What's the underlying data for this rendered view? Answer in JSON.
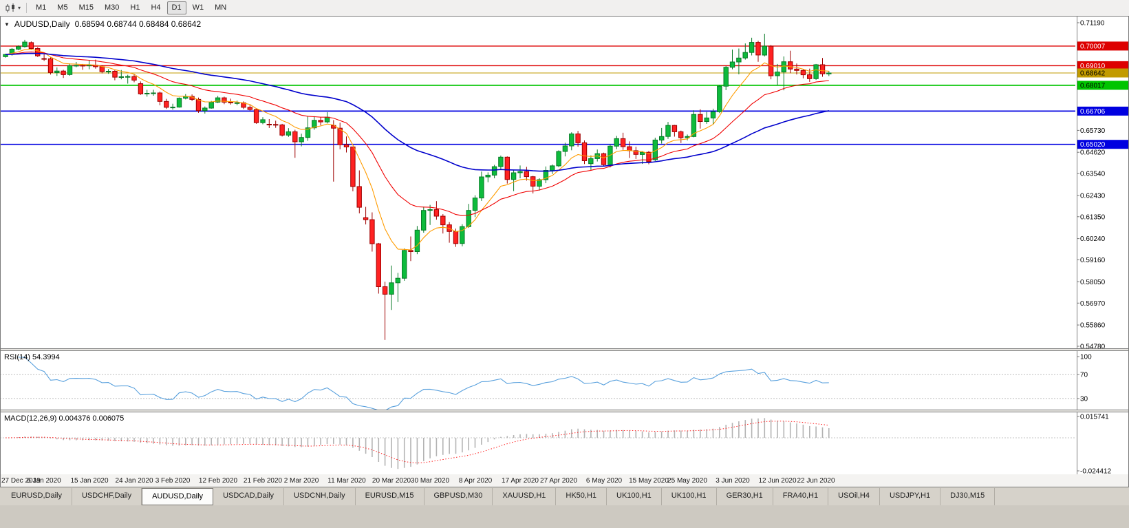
{
  "toolbar": {
    "chart_type_icon": "candlestick-chart",
    "dropdown_caret": "▾",
    "timeframes": [
      "M1",
      "M5",
      "M15",
      "M30",
      "H1",
      "H4",
      "D1",
      "W1",
      "MN"
    ],
    "active_timeframe": "D1"
  },
  "chart": {
    "header": {
      "collapse_icon": "▼",
      "symbol": "AUDUSD,Daily",
      "ohlc": "0.68594 0.68744 0.68484 0.68642"
    }
  },
  "chart_data": {
    "type": "candlestick",
    "symbol": "AUDUSD",
    "timeframe": "Daily",
    "price_axis": {
      "top": 0.7119,
      "bottom": 0.5478,
      "labels": [
        "0.71190",
        "0.65730",
        "0.64620",
        "0.63540",
        "0.62430",
        "0.61350",
        "0.60240",
        "0.59160",
        "0.58050",
        "0.56970",
        "0.55860",
        "0.54780"
      ]
    },
    "levels": [
      {
        "label": "0.70007",
        "value": 0.70007,
        "color": "#dd0000",
        "text_color": "#ffffff",
        "width": 1.4
      },
      {
        "label": "0.69010",
        "value": 0.6901,
        "color": "#dd0000",
        "text_color": "#ffffff",
        "width": 1.4
      },
      {
        "label": "0.68642",
        "value": 0.68642,
        "color": "#c29b00",
        "text_color": "#000000",
        "width": 1.1
      },
      {
        "label": "0.68017",
        "value": 0.68017,
        "color": "#00c400",
        "text_color": "#000000",
        "width": 1.7
      },
      {
        "label": "0.66706",
        "value": 0.66706,
        "color": "#0000e0",
        "text_color": "#ffffff",
        "width": 1.7
      },
      {
        "label": "0.65020",
        "value": 0.6502,
        "color": "#0000e0",
        "text_color": "#ffffff",
        "width": 1.7
      }
    ],
    "colors": {
      "up": "#0dbb3c",
      "up_border": "#077a26",
      "down": "#ff2222",
      "down_border": "#9e0000"
    },
    "moving_averages": [
      {
        "name": "fast-ma",
        "period": 8,
        "color": "#ff9c00",
        "width": 1.1
      },
      {
        "name": "medium-ma",
        "period": 21,
        "color": "#f00000",
        "width": 1.1
      },
      {
        "name": "slow-ma",
        "period": 55,
        "color": "#0000cc",
        "width": 1.6
      }
    ],
    "x_labels": [
      [
        1,
        "27 Dec 2019"
      ],
      [
        6,
        "6 Jan 2020"
      ],
      [
        13,
        "15 Jan 2020"
      ],
      [
        20,
        "24 Jan 2020"
      ],
      [
        26,
        "3 Feb 2020"
      ],
      [
        33,
        "12 Feb 2020"
      ],
      [
        40,
        "21 Feb 2020"
      ],
      [
        46,
        "2 Mar 2020"
      ],
      [
        53,
        "11 Mar 2020"
      ],
      [
        60,
        "20 Mar 2020"
      ],
      [
        66,
        "30 Mar 2020"
      ],
      [
        73,
        "8 Apr 2020"
      ],
      [
        80,
        "17 Apr 2020"
      ],
      [
        86,
        "27 Apr 2020"
      ],
      [
        93,
        "6 May 2020"
      ],
      [
        100,
        "15 May 2020"
      ],
      [
        106,
        "25 May 2020"
      ],
      [
        113,
        "3 Jun 2020"
      ],
      [
        120,
        "12 Jun 2020"
      ],
      [
        126,
        "22 Jun 2020"
      ]
    ],
    "ohlc": [
      [
        0.6947,
        0.6962,
        0.6942,
        0.6958
      ],
      [
        0.6958,
        0.699,
        0.6952,
        0.6985
      ],
      [
        0.6985,
        0.7004,
        0.698,
        0.6998
      ],
      [
        0.6998,
        0.7032,
        0.6993,
        0.7021
      ],
      [
        0.7018,
        0.7024,
        0.6981,
        0.6988
      ],
      [
        0.6988,
        0.6995,
        0.6945,
        0.6951
      ],
      [
        0.6937,
        0.6959,
        0.6925,
        0.6936
      ],
      [
        0.6936,
        0.6943,
        0.6856,
        0.6866
      ],
      [
        0.6866,
        0.6892,
        0.6849,
        0.6874
      ],
      [
        0.6874,
        0.688,
        0.6839,
        0.6856
      ],
      [
        0.6856,
        0.6912,
        0.685,
        0.6901
      ],
      [
        0.6901,
        0.692,
        0.6893,
        0.6903
      ],
      [
        0.6903,
        0.691,
        0.688,
        0.6902
      ],
      [
        0.6902,
        0.6927,
        0.6883,
        0.6904
      ],
      [
        0.6904,
        0.6932,
        0.6886,
        0.6896
      ],
      [
        0.6896,
        0.6903,
        0.6862,
        0.6871
      ],
      [
        0.6871,
        0.6884,
        0.686,
        0.6873
      ],
      [
        0.6873,
        0.6878,
        0.6827,
        0.6843
      ],
      [
        0.6843,
        0.6879,
        0.6832,
        0.6845
      ],
      [
        0.6845,
        0.6855,
        0.681,
        0.6846
      ],
      [
        0.6846,
        0.6858,
        0.6817,
        0.6828
      ],
      [
        0.681,
        0.6821,
        0.6753,
        0.6758
      ],
      [
        0.6758,
        0.6779,
        0.6744,
        0.6761
      ],
      [
        0.6761,
        0.6779,
        0.6749,
        0.6763
      ],
      [
        0.6763,
        0.677,
        0.67,
        0.672
      ],
      [
        0.672,
        0.6733,
        0.6682,
        0.669
      ],
      [
        0.669,
        0.6708,
        0.6678,
        0.6691
      ],
      [
        0.6691,
        0.674,
        0.6688,
        0.6736
      ],
      [
        0.6736,
        0.6757,
        0.673,
        0.6745
      ],
      [
        0.6745,
        0.6755,
        0.6722,
        0.673
      ],
      [
        0.673,
        0.6739,
        0.6662,
        0.6673
      ],
      [
        0.6673,
        0.6694,
        0.6658,
        0.6686
      ],
      [
        0.6686,
        0.6722,
        0.6683,
        0.6716
      ],
      [
        0.6716,
        0.6748,
        0.6712,
        0.6738
      ],
      [
        0.6738,
        0.6744,
        0.6706,
        0.6716
      ],
      [
        0.6716,
        0.6734,
        0.6704,
        0.6712
      ],
      [
        0.6712,
        0.6724,
        0.67,
        0.6713
      ],
      [
        0.6713,
        0.672,
        0.6681,
        0.669
      ],
      [
        0.669,
        0.6702,
        0.6673,
        0.6679
      ],
      [
        0.6679,
        0.6683,
        0.6606,
        0.6612
      ],
      [
        0.6612,
        0.664,
        0.6604,
        0.6627
      ],
      [
        0.6604,
        0.663,
        0.6585,
        0.6603
      ],
      [
        0.6603,
        0.6622,
        0.6586,
        0.6601
      ],
      [
        0.6601,
        0.6606,
        0.6542,
        0.6549
      ],
      [
        0.6549,
        0.6584,
        0.654,
        0.6566
      ],
      [
        0.6566,
        0.6576,
        0.6434,
        0.6515
      ],
      [
        0.6515,
        0.6556,
        0.6492,
        0.6537
      ],
      [
        0.6537,
        0.6646,
        0.652,
        0.6586
      ],
      [
        0.6586,
        0.6645,
        0.6576,
        0.6624
      ],
      [
        0.6624,
        0.6639,
        0.6598,
        0.6616
      ],
      [
        0.6616,
        0.6665,
        0.6609,
        0.664
      ],
      [
        0.6598,
        0.6625,
        0.6313,
        0.6584
      ],
      [
        0.6584,
        0.6612,
        0.6477,
        0.65
      ],
      [
        0.65,
        0.6542,
        0.6461,
        0.6489
      ],
      [
        0.6489,
        0.649,
        0.6264,
        0.6288
      ],
      [
        0.6288,
        0.637,
        0.6152,
        0.6183
      ],
      [
        0.613,
        0.6185,
        0.6096,
        0.612
      ],
      [
        0.612,
        0.6157,
        0.5958,
        0.5998
      ],
      [
        0.5998,
        0.6002,
        0.5745,
        0.578
      ],
      [
        0.578,
        0.5805,
        0.551,
        0.5742
      ],
      [
        0.5742,
        0.5887,
        0.5662,
        0.58
      ],
      [
        0.58,
        0.585,
        0.5702,
        0.5823
      ],
      [
        0.5823,
        0.5974,
        0.581,
        0.5964
      ],
      [
        0.5964,
        0.6035,
        0.591,
        0.5958
      ],
      [
        0.5958,
        0.6088,
        0.5945,
        0.6067
      ],
      [
        0.6067,
        0.6186,
        0.6054,
        0.6167
      ],
      [
        0.6167,
        0.6195,
        0.6093,
        0.6171
      ],
      [
        0.6171,
        0.6214,
        0.612,
        0.6138
      ],
      [
        0.6138,
        0.6148,
        0.605,
        0.6094
      ],
      [
        0.6094,
        0.6108,
        0.6003,
        0.606
      ],
      [
        0.606,
        0.6075,
        0.5982,
        0.5999
      ],
      [
        0.5999,
        0.6097,
        0.5985,
        0.6085
      ],
      [
        0.6085,
        0.62,
        0.6078,
        0.6167
      ],
      [
        0.6167,
        0.6244,
        0.6133,
        0.623
      ],
      [
        0.623,
        0.6364,
        0.6215,
        0.6337
      ],
      [
        0.6337,
        0.636,
        0.631,
        0.6346
      ],
      [
        0.6346,
        0.6398,
        0.633,
        0.6389
      ],
      [
        0.6389,
        0.6445,
        0.6375,
        0.6437
      ],
      [
        0.6437,
        0.6441,
        0.6303,
        0.6324
      ],
      [
        0.6324,
        0.637,
        0.6265,
        0.6358
      ],
      [
        0.6358,
        0.6395,
        0.633,
        0.6364
      ],
      [
        0.6364,
        0.6388,
        0.6318,
        0.6338
      ],
      [
        0.6338,
        0.6342,
        0.6253,
        0.629
      ],
      [
        0.629,
        0.633,
        0.6268,
        0.6323
      ],
      [
        0.6323,
        0.639,
        0.6305,
        0.637
      ],
      [
        0.637,
        0.64,
        0.6352,
        0.6393
      ],
      [
        0.6393,
        0.6472,
        0.6386,
        0.6466
      ],
      [
        0.6466,
        0.651,
        0.6441,
        0.6494
      ],
      [
        0.6494,
        0.6563,
        0.6472,
        0.6555
      ],
      [
        0.6555,
        0.657,
        0.649,
        0.651
      ],
      [
        0.651,
        0.6522,
        0.6402,
        0.6419
      ],
      [
        0.6404,
        0.6446,
        0.6372,
        0.643
      ],
      [
        0.643,
        0.6476,
        0.6415,
        0.6455
      ],
      [
        0.6455,
        0.646,
        0.6391,
        0.6399
      ],
      [
        0.6399,
        0.6503,
        0.6385,
        0.6493
      ],
      [
        0.6493,
        0.6545,
        0.6478,
        0.6531
      ],
      [
        0.6531,
        0.6561,
        0.6474,
        0.649
      ],
      [
        0.649,
        0.6517,
        0.6433,
        0.647
      ],
      [
        0.647,
        0.649,
        0.6428,
        0.6451
      ],
      [
        0.6451,
        0.6468,
        0.6403,
        0.6462
      ],
      [
        0.6462,
        0.6469,
        0.6401,
        0.6415
      ],
      [
        0.6424,
        0.6536,
        0.6417,
        0.6524
      ],
      [
        0.6524,
        0.6585,
        0.6506,
        0.6542
      ],
      [
        0.6542,
        0.6616,
        0.653,
        0.6598
      ],
      [
        0.6598,
        0.6601,
        0.6541,
        0.6566
      ],
      [
        0.6566,
        0.6572,
        0.6509,
        0.6536
      ],
      [
        0.6536,
        0.6552,
        0.6522,
        0.6542
      ],
      [
        0.6542,
        0.6675,
        0.6538,
        0.6654
      ],
      [
        0.6654,
        0.668,
        0.6582,
        0.6618
      ],
      [
        0.6618,
        0.6666,
        0.6606,
        0.6636
      ],
      [
        0.6636,
        0.6683,
        0.6602,
        0.6667
      ],
      [
        0.6667,
        0.6803,
        0.6661,
        0.6797
      ],
      [
        0.6797,
        0.6899,
        0.6777,
        0.6893
      ],
      [
        0.6893,
        0.6983,
        0.6883,
        0.692
      ],
      [
        0.692,
        0.6988,
        0.6857,
        0.694
      ],
      [
        0.694,
        0.7014,
        0.6932,
        0.6968
      ],
      [
        0.6968,
        0.7043,
        0.6953,
        0.7019
      ],
      [
        0.7019,
        0.7027,
        0.6921,
        0.6955
      ],
      [
        0.6955,
        0.7063,
        0.6948,
        0.7
      ],
      [
        0.7,
        0.7006,
        0.6832,
        0.685
      ],
      [
        0.685,
        0.691,
        0.68,
        0.6869
      ],
      [
        0.6869,
        0.6948,
        0.6776,
        0.6921
      ],
      [
        0.6921,
        0.6977,
        0.6863,
        0.6884
      ],
      [
        0.6884,
        0.6912,
        0.6856,
        0.6877
      ],
      [
        0.6877,
        0.6885,
        0.6837,
        0.6855
      ],
      [
        0.6855,
        0.6886,
        0.6819,
        0.6835
      ],
      [
        0.6835,
        0.691,
        0.6829,
        0.6906
      ],
      [
        0.6906,
        0.694,
        0.6845,
        0.686
      ],
      [
        0.68594,
        0.68744,
        0.68484,
        0.68642
      ]
    ],
    "indicators": {
      "rsi": {
        "label": "RSI(14) 54.3994",
        "period": 14,
        "value": 54.3994,
        "levels": [
          100,
          70,
          30
        ],
        "color": "#58a0dd"
      },
      "macd": {
        "label": "MACD(12,26,9) 0.004376 0.006075",
        "fast": 12,
        "slow": 26,
        "signal_period": 9,
        "value": 0.004376,
        "signal_value": 0.006075,
        "axis_labels": [
          "0.015741",
          "-0.024412"
        ],
        "axis_values": [
          0.015741,
          -0.024412
        ],
        "histogram_color": "#b3b3b3",
        "signal_color": "#ff2020"
      }
    }
  },
  "tabs": {
    "items": [
      "EURUSD,Daily",
      "USDCHF,Daily",
      "AUDUSD,Daily",
      "USDCAD,Daily",
      "USDCNH,Daily",
      "EURUSD,M15",
      "GBPUSD,M30",
      "XAUUSD,H1",
      "HK50,H1",
      "UK100,H1",
      "UK100,H1",
      "GER30,H1",
      "FRA40,H1",
      "USOil,H4",
      "USDJPY,H1",
      "DJ30,M15"
    ],
    "active_index": 2
  }
}
